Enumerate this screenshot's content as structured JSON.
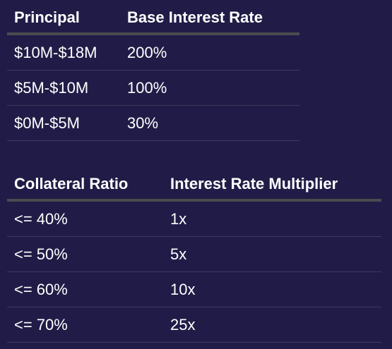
{
  "principal_table": {
    "headers": [
      "Principal",
      "Base Interest Rate"
    ],
    "rows": [
      [
        "$10M-$18M",
        "200%"
      ],
      [
        "$5M-$10M",
        "100%"
      ],
      [
        "$0M-$5M",
        "30%"
      ]
    ]
  },
  "collateral_table": {
    "headers": [
      "Collateral Ratio",
      "Interest Rate Multiplier"
    ],
    "rows": [
      [
        "<= 40%",
        "1x"
      ],
      [
        "<= 50%",
        "5x"
      ],
      [
        "<= 60%",
        "10x"
      ],
      [
        "<= 70%",
        "25x"
      ]
    ]
  },
  "colors": {
    "background": "#201c47",
    "text": "#ffffff",
    "header_rule": "#4b4b4f",
    "row_rule": "#3e3a5c"
  }
}
